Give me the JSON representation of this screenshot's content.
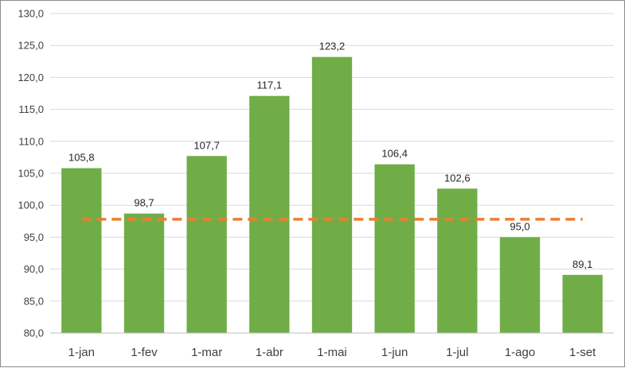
{
  "chart_data": {
    "type": "bar",
    "categories": [
      "1-jan",
      "1-fev",
      "1-mar",
      "1-abr",
      "1-mai",
      "1-jun",
      "1-jul",
      "1-ago",
      "1-set"
    ],
    "values": [
      105.8,
      98.7,
      107.7,
      117.1,
      123.2,
      106.4,
      102.6,
      95.0,
      89.1
    ],
    "data_labels": [
      "105,8",
      "98,7",
      "107,7",
      "117,1",
      "123,2",
      "106,4",
      "102,6",
      "95,0",
      "89,1"
    ],
    "y_ticks": [
      "80,0",
      "85,0",
      "90,0",
      "95,0",
      "100,0",
      "105,0",
      "110,0",
      "115,0",
      "120,0",
      "125,0",
      "130,0"
    ],
    "ylim": [
      80,
      130
    ],
    "reference_line": {
      "value": 97.8,
      "style": "dashed",
      "color": "#ED7D31"
    },
    "bar_color": "#70AD47",
    "grid": true,
    "legend": "none",
    "title": "",
    "xlabel": "",
    "ylabel": ""
  }
}
